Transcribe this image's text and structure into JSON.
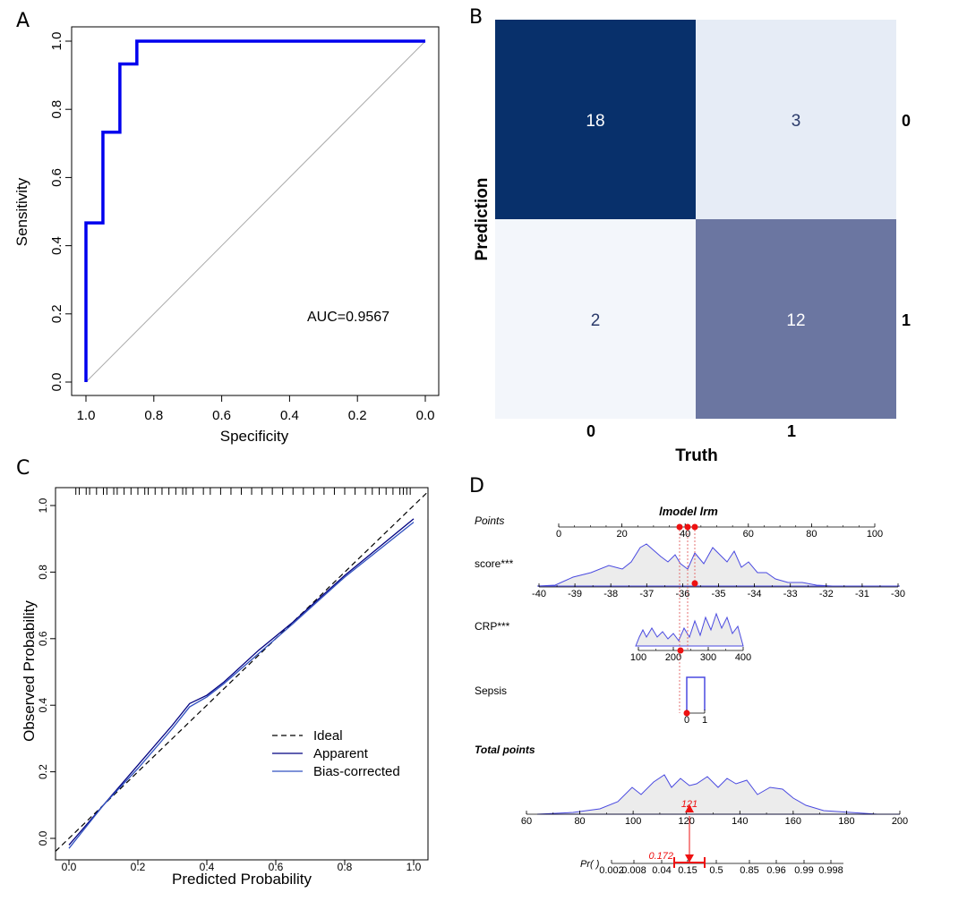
{
  "panels": {
    "a": "A",
    "b": "B",
    "c": "C",
    "d": "D"
  },
  "chart_data": [
    {
      "type": "line",
      "panel": "A",
      "xlabel": "Specificity",
      "ylabel": "Sensitivity",
      "xlim": [
        1.0,
        0.0
      ],
      "ylim": [
        0.0,
        1.0
      ],
      "x_ticks": [
        "1.0",
        "0.8",
        "0.6",
        "0.4",
        "0.2",
        "0.0"
      ],
      "y_ticks": [
        "0.0",
        "0.2",
        "0.4",
        "0.6",
        "0.8",
        "1.0"
      ],
      "annotation": "AUC=0.9567",
      "colors": {
        "roc": "#0000ee",
        "diagonal": "#aaaaaa"
      },
      "series": [
        {
          "specificity": [
            1.0,
            1.0,
            0.95,
            0.95,
            0.9,
            0.9,
            0.85,
            0.85,
            0.0
          ],
          "sensitivity": [
            0.0,
            0.467,
            0.467,
            0.733,
            0.733,
            0.933,
            0.933,
            1.0,
            1.0
          ]
        }
      ]
    },
    {
      "type": "heatmap",
      "panel": "B",
      "xlabel": "Truth",
      "ylabel": "Prediction",
      "x_categories": [
        "0",
        "1"
      ],
      "y_categories": [
        "0",
        "1"
      ],
      "cells": [
        {
          "truth": "0",
          "prediction": "0",
          "value": "18",
          "fill": "#08306b",
          "text": "#ffffff"
        },
        {
          "truth": "1",
          "prediction": "0",
          "value": "3",
          "fill": "#e6ecf6",
          "text": "#2a3a6a"
        },
        {
          "truth": "0",
          "prediction": "1",
          "value": "2",
          "fill": "#f3f6fb",
          "text": "#2a3a6a"
        },
        {
          "truth": "1",
          "prediction": "1",
          "value": "12",
          "fill": "#6b76a1",
          "text": "#ffffff"
        }
      ]
    },
    {
      "type": "line",
      "panel": "C",
      "xlabel": "Predicted Probability",
      "ylabel": "Observed Probability",
      "xlim": [
        0.0,
        1.0
      ],
      "ylim": [
        0.0,
        1.0
      ],
      "x_ticks": [
        "0.0",
        "0.2",
        "0.4",
        "0.6",
        "0.8",
        "1.0"
      ],
      "y_ticks": [
        "0.0",
        "0.2",
        "0.4",
        "0.6",
        "0.8",
        "1.0"
      ],
      "legend": "bottom-right",
      "legend_labels": {
        "ideal": "Ideal",
        "apparent": "Apparent",
        "bias": "Bias-corrected"
      },
      "series": [
        {
          "name": "Apparent",
          "color": "#000080",
          "x": [
            0.0,
            0.05,
            0.1,
            0.2,
            0.3,
            0.35,
            0.4,
            0.45,
            0.55,
            0.65,
            0.8,
            1.0
          ],
          "y": [
            -0.02,
            0.04,
            0.1,
            0.22,
            0.34,
            0.405,
            0.43,
            0.47,
            0.565,
            0.65,
            0.79,
            0.96
          ]
        },
        {
          "name": "Bias-corrected",
          "color": "#3050c0",
          "x": [
            0.0,
            0.05,
            0.1,
            0.2,
            0.3,
            0.35,
            0.4,
            0.45,
            0.55,
            0.65,
            0.8,
            1.0
          ],
          "y": [
            -0.03,
            0.035,
            0.1,
            0.21,
            0.33,
            0.395,
            0.425,
            0.465,
            0.555,
            0.645,
            0.785,
            0.95
          ]
        }
      ],
      "rug_x": [
        0.02,
        0.03,
        0.05,
        0.06,
        0.08,
        0.1,
        0.11,
        0.13,
        0.14,
        0.16,
        0.18,
        0.2,
        0.22,
        0.23,
        0.25,
        0.27,
        0.29,
        0.31,
        0.33,
        0.34,
        0.36,
        0.39,
        0.41,
        0.44,
        0.47,
        0.5,
        0.53,
        0.56,
        0.59,
        0.62,
        0.65,
        0.68,
        0.71,
        0.74,
        0.77,
        0.8,
        0.83,
        0.86,
        0.88,
        0.9,
        0.92,
        0.94,
        0.96,
        0.97,
        0.98,
        0.99
      ]
    },
    {
      "type": "other",
      "panel": "D",
      "title": "lmodel lrm",
      "rows": {
        "points": {
          "label": "Points",
          "ticks": [
            "0",
            "20",
            "40",
            "60",
            "80",
            "100"
          ],
          "selected": [
            38,
            40,
            43
          ]
        },
        "score": {
          "label": "score***",
          "ticks": [
            "-40",
            "-39",
            "-38",
            "-37",
            "-36",
            "-35",
            "-34",
            "-33",
            "-32",
            "-31",
            "-30"
          ],
          "value": -35.6
        },
        "crp": {
          "label": "CRP***",
          "ticks": [
            "100",
            "200",
            "300",
            "400"
          ],
          "value": 210
        },
        "sepsis": {
          "label": "Sepsis",
          "ticks": [
            "0",
            "1"
          ],
          "value": 0
        },
        "total": {
          "label": "Total points",
          "ticks": [
            "60",
            "80",
            "100",
            "120",
            "140",
            "160",
            "180",
            "200"
          ],
          "value": 121,
          "value_label": "121"
        },
        "pr": {
          "label": "Pr( )",
          "ticks": [
            "0.002",
            "0.008",
            "0.04",
            "0.15",
            "0.5",
            "0.85",
            "0.96",
            "0.99",
            "0.998"
          ],
          "value_label": "0.172"
        }
      }
    }
  ]
}
